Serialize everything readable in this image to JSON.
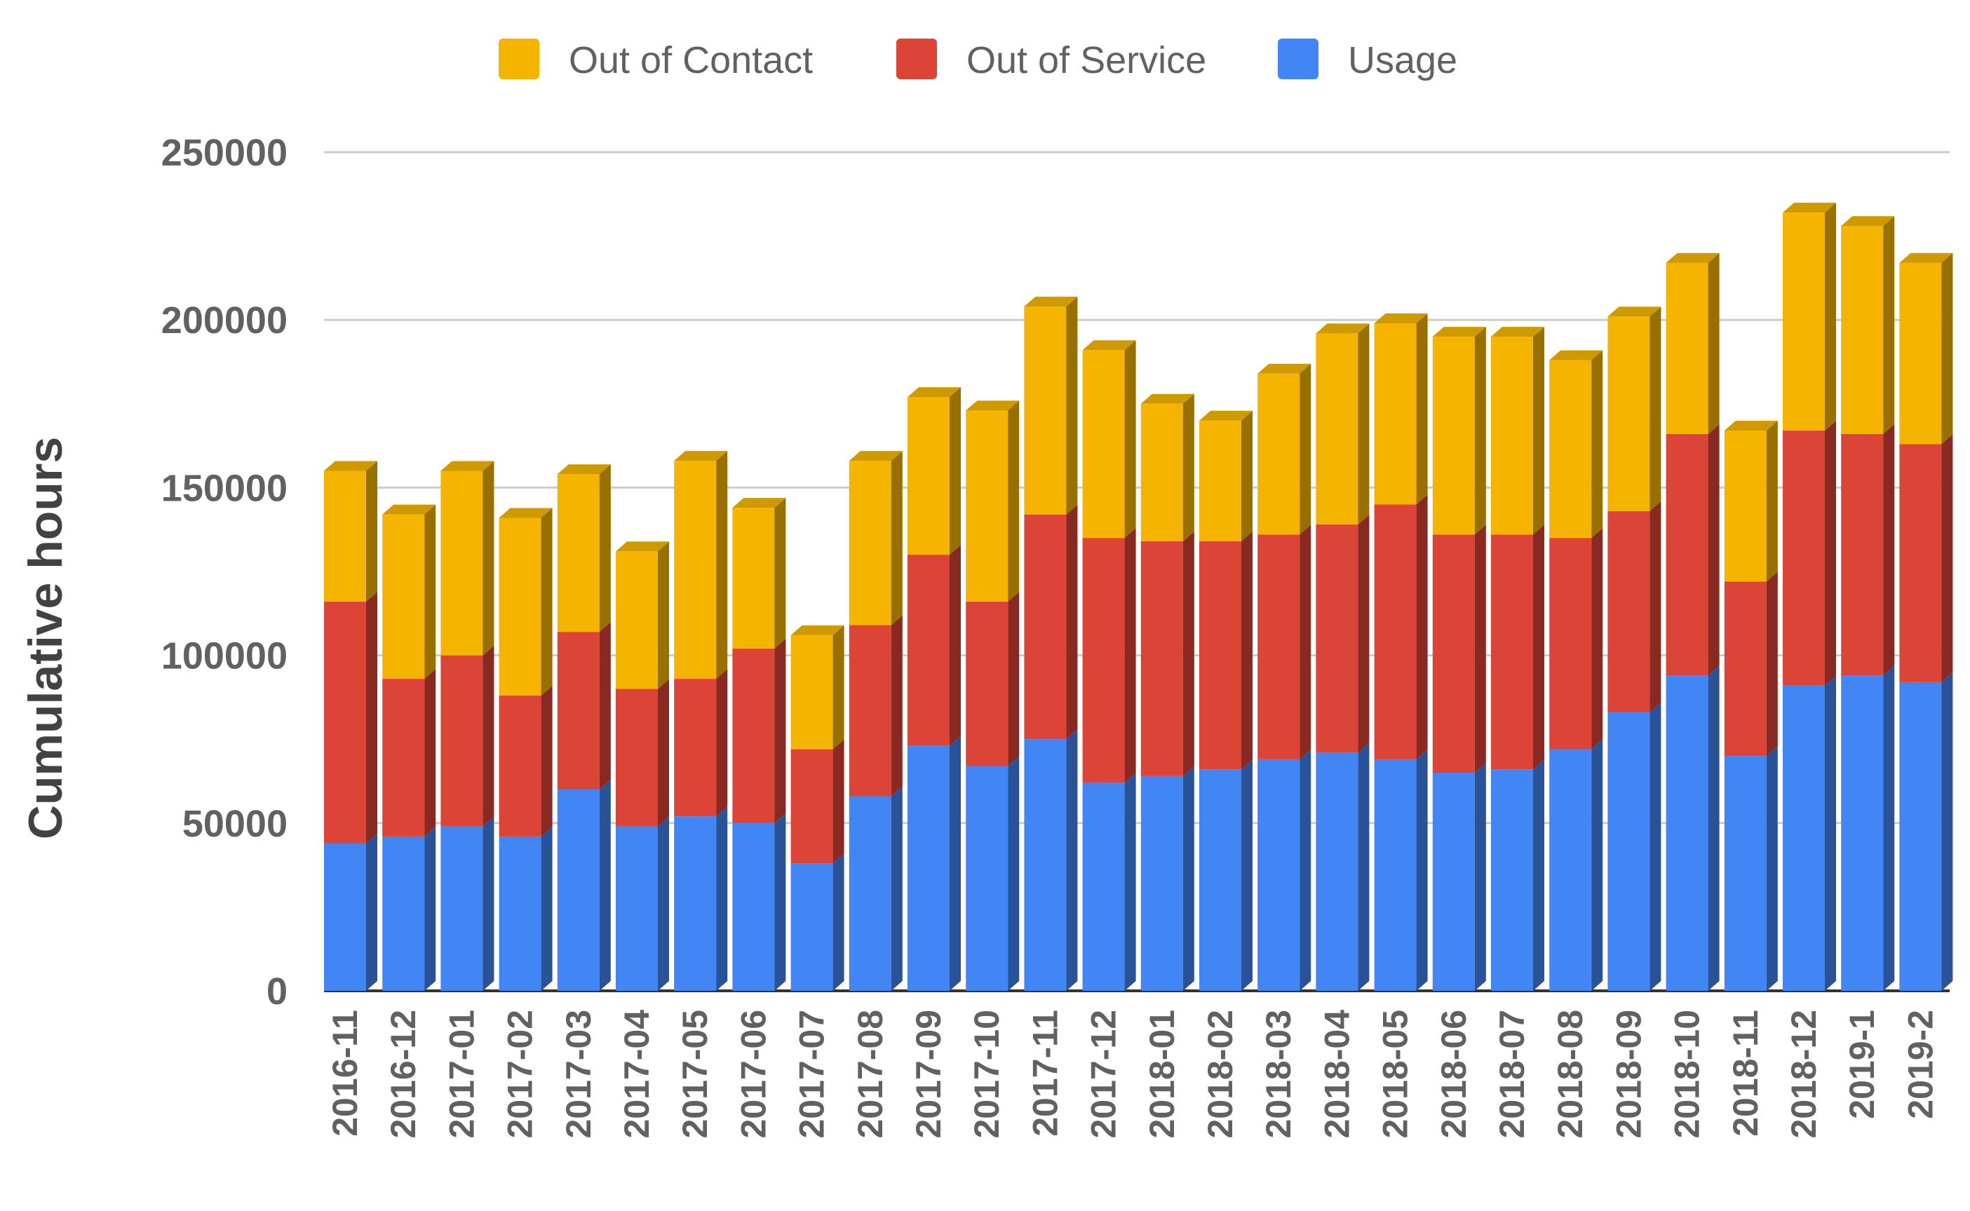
{
  "chart_data": {
    "type": "bar",
    "stacked": true,
    "three_d": true,
    "title": "",
    "xlabel": "",
    "ylabel": "Cumulative hours",
    "ylim": [
      0,
      250000
    ],
    "yticks": [
      0,
      50000,
      100000,
      150000,
      200000,
      250000
    ],
    "yticks_labels": [
      "0",
      "50000",
      "100000",
      "150000",
      "200000",
      "250000"
    ],
    "grid": true,
    "legend_position": "top",
    "categories": [
      "2016-11",
      "2016-12",
      "2017-01",
      "2017-02",
      "2017-03",
      "2017-04",
      "2017-05",
      "2017-06",
      "2017-07",
      "2017-08",
      "2017-09",
      "2017-10",
      "2017-11",
      "2017-12",
      "2018-01",
      "2018-02",
      "2018-03",
      "2018-04",
      "2018-05",
      "2018-06",
      "2018-07",
      "2018-08",
      "2018-09",
      "2018-10",
      "2018-11",
      "2018-12",
      "2019-1",
      "2019-2"
    ],
    "series": [
      {
        "name": "Usage",
        "color": "#4285f4",
        "values": [
          44000,
          46000,
          49000,
          46000,
          60000,
          49000,
          52000,
          50000,
          38000,
          58000,
          73000,
          67000,
          75000,
          62000,
          64000,
          66000,
          69000,
          71000,
          69000,
          65000,
          66000,
          72000,
          83000,
          94000,
          70000,
          91000,
          94000,
          92000
        ]
      },
      {
        "name": "Out of Service",
        "color": "#db4437",
        "values": [
          72000,
          47000,
          51000,
          42000,
          47000,
          41000,
          41000,
          52000,
          34000,
          51000,
          57000,
          49000,
          67000,
          73000,
          70000,
          68000,
          67000,
          68000,
          76000,
          71000,
          70000,
          63000,
          60000,
          72000,
          52000,
          76000,
          72000,
          71000
        ]
      },
      {
        "name": "Out of Contact",
        "color": "#f4b400",
        "values": [
          39000,
          49000,
          55000,
          53000,
          47000,
          41000,
          65000,
          42000,
          34000,
          49000,
          47000,
          57000,
          62000,
          56000,
          41000,
          36000,
          48000,
          57000,
          54000,
          59000,
          59000,
          53000,
          58000,
          51000,
          45000,
          65000,
          62000,
          54000
        ]
      }
    ],
    "legend_order": [
      "Out of Contact",
      "Out of Service",
      "Usage"
    ]
  }
}
